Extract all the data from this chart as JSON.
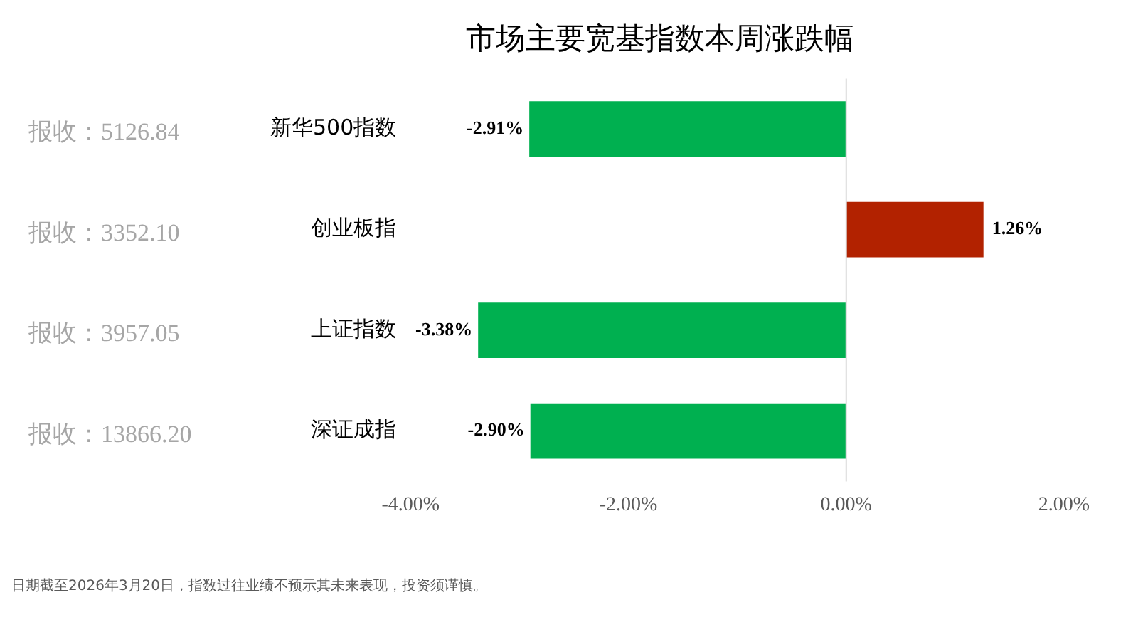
{
  "chart_data": {
    "type": "bar",
    "orientation": "horizontal",
    "title": "市场主要宽基指数本周涨跌幅",
    "categories": [
      "新华500指数",
      "创业板指",
      "上证指数",
      "深证成指"
    ],
    "values": [
      -2.91,
      1.26,
      -3.38,
      -2.9
    ],
    "colors": [
      "#00b050",
      "#b22200",
      "#00b050",
      "#00b050"
    ],
    "value_labels": [
      "-2.91%",
      "1.26%",
      "-3.38%",
      "-2.90%"
    ],
    "xlim": [
      -4,
      2
    ],
    "xticks": [
      {
        "value": -4,
        "label": "-4.00%"
      },
      {
        "value": -2,
        "label": "-2.00%"
      },
      {
        "value": 0,
        "label": "0.00%"
      },
      {
        "value": 2,
        "label": "2.00%"
      }
    ],
    "grid": false,
    "legend": false,
    "ref_lines": [
      {
        "axis": "x",
        "value": 0,
        "color": "#d9d9d9"
      }
    ],
    "annotations": [
      "报收：5126.84",
      "报收：3352.10",
      "报收：3957.05",
      "报收：13866.20",
      "日期截至2026年3月20日，指数过往业绩不预示其未来表现，投资须谨慎。"
    ]
  }
}
